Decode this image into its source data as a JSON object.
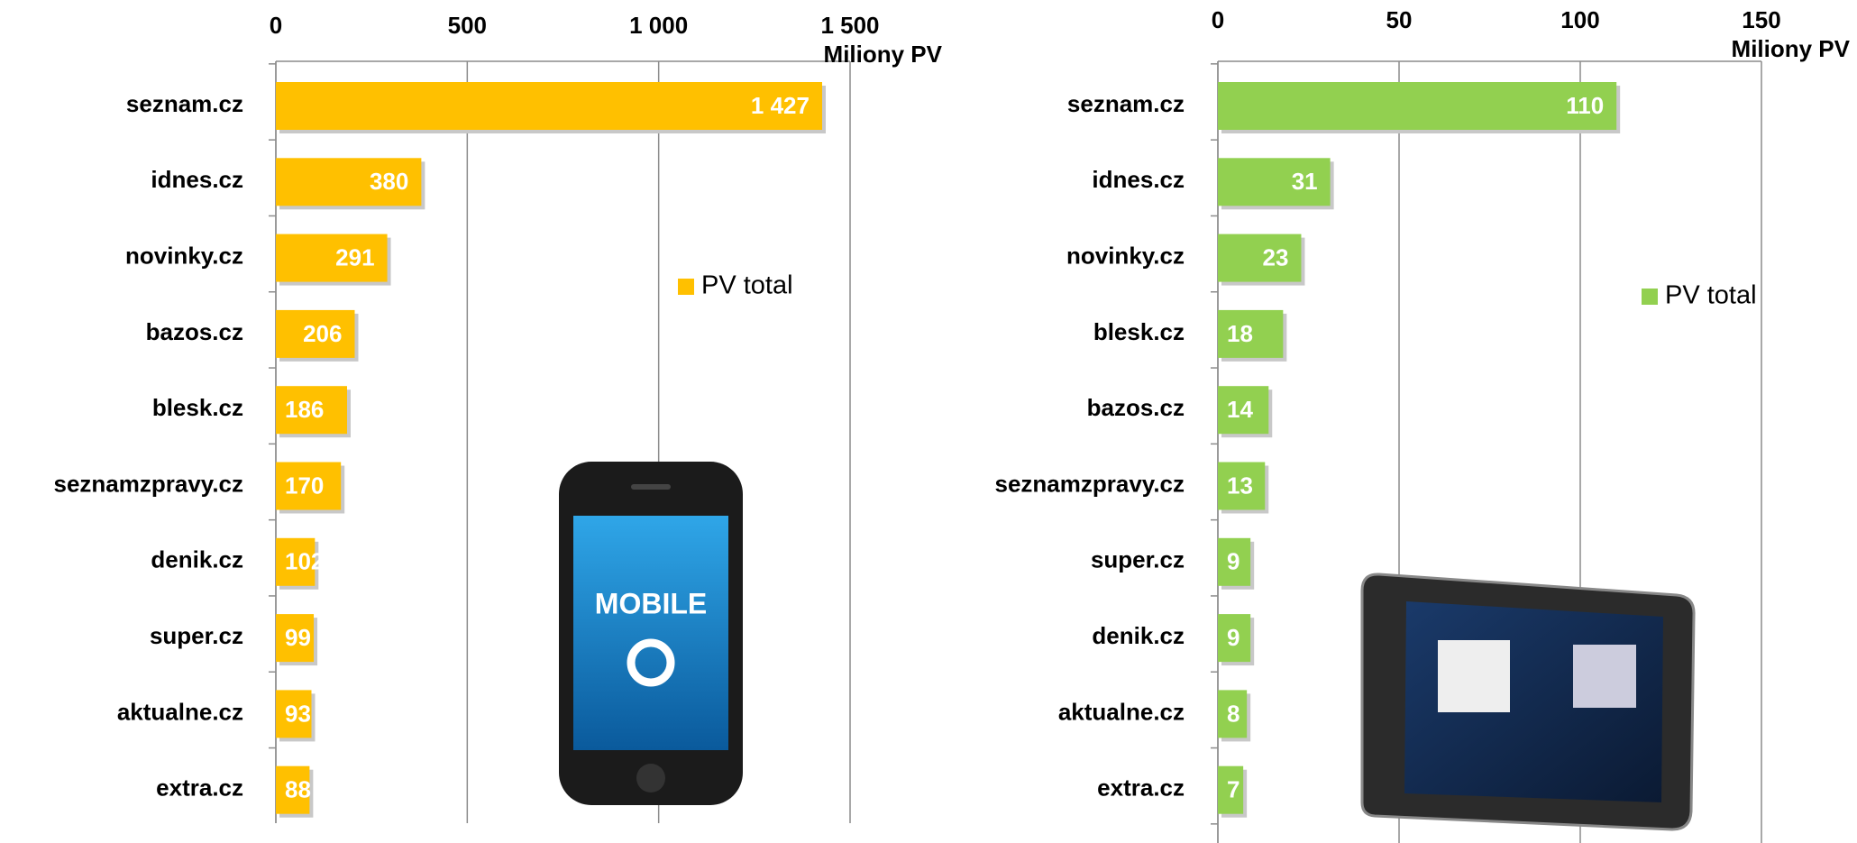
{
  "chart_data": [
    {
      "type": "bar",
      "orientation": "horizontal",
      "x_label": "Miliony PV",
      "image_text": "MOBILE",
      "categories": [
        "seznam.cz",
        "idnes.cz",
        "novinky.cz",
        "bazos.cz",
        "blesk.cz",
        "seznamzpravy.cz",
        "denik.cz",
        "super.cz",
        "aktualne.cz",
        "extra.cz"
      ],
      "series": [
        {
          "name": "PV total",
          "color": "#ffc000",
          "values": [
            1427,
            380,
            291,
            206,
            186,
            170,
            102,
            99,
            93,
            88
          ],
          "value_labels": [
            "1 427",
            "380",
            "291",
            "206",
            "186",
            "170",
            "102",
            "99",
            "93",
            "88"
          ]
        }
      ],
      "xlim": [
        0,
        1500
      ],
      "xticks": [
        0,
        500,
        {
          "value": 1000,
          "label": "1 000"
        },
        {
          "value": 1500,
          "label": "1 500"
        }
      ],
      "grid": true,
      "legend": "right"
    },
    {
      "type": "bar",
      "orientation": "horizontal",
      "x_label": "Miliony PV",
      "categories": [
        "seznam.cz",
        "idnes.cz",
        "novinky.cz",
        "blesk.cz",
        "bazos.cz",
        "seznamzpravy.cz",
        "super.cz",
        "denik.cz",
        "aktualne.cz",
        "extra.cz"
      ],
      "series": [
        {
          "name": "PV total",
          "color": "#92d050",
          "values": [
            110,
            31,
            23,
            18,
            14,
            13,
            9,
            9,
            8,
            7
          ]
        }
      ],
      "xlim": [
        0,
        150
      ],
      "xticks": [
        0,
        50,
        100,
        150
      ],
      "grid": true,
      "legend": "right"
    }
  ]
}
